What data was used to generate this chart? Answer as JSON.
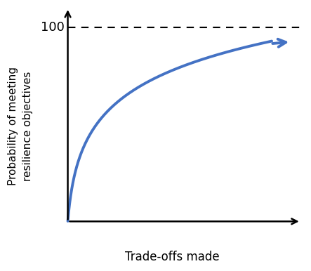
{
  "title": "",
  "xlabel": "Trade-offs made",
  "ylabel": "Probability of meeting\nresilience objectives",
  "curve_color": "#4472C4",
  "curve_linewidth": 2.8,
  "dashed_color": "#000000",
  "axis_color": "#000000",
  "xlabel_fontsize": 12,
  "ylabel_fontsize": 11,
  "label_100_fontsize": 13,
  "xmin": 0.0,
  "xmax": 10.0,
  "ymin": 0.0,
  "ymax": 110.0,
  "background_color": "#ffffff"
}
